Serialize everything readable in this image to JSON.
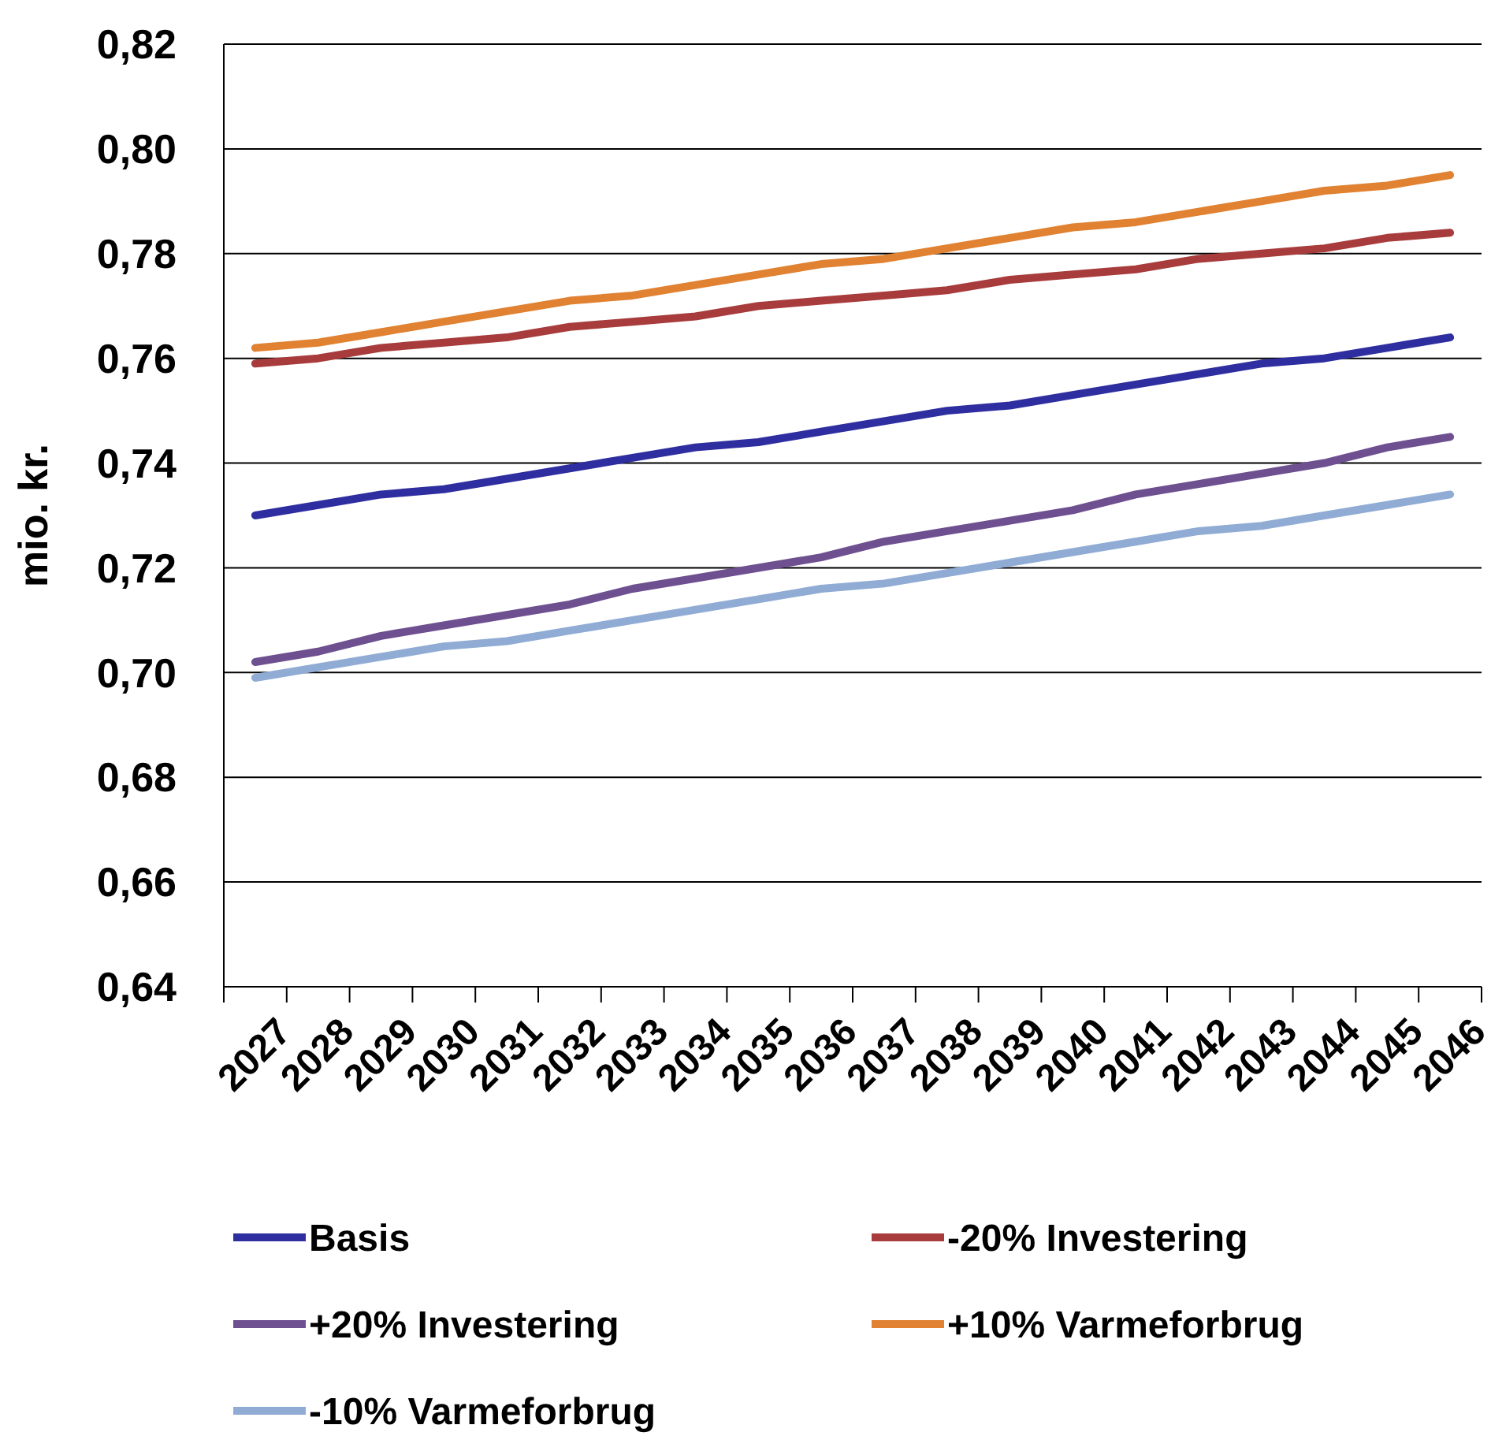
{
  "chart_data": {
    "type": "line",
    "ylabel": "mio. kr.",
    "categories": [
      "2027",
      "2028",
      "2029",
      "2030",
      "2031",
      "2032",
      "2033",
      "2034",
      "2035",
      "2036",
      "2037",
      "2038",
      "2039",
      "2040",
      "2041",
      "2042",
      "2043",
      "2044",
      "2045",
      "2046"
    ],
    "series": [
      {
        "name": "Basis",
        "color": "#2e2ea0",
        "values": [
          0.73,
          0.732,
          0.734,
          0.735,
          0.737,
          0.739,
          0.741,
          0.743,
          0.744,
          0.746,
          0.748,
          0.75,
          0.751,
          0.753,
          0.755,
          0.757,
          0.759,
          0.76,
          0.762,
          0.764
        ]
      },
      {
        "name": "-20% Investering",
        "color": "#a83c3c",
        "values": [
          0.759,
          0.76,
          0.762,
          0.763,
          0.764,
          0.766,
          0.767,
          0.768,
          0.77,
          0.771,
          0.772,
          0.773,
          0.775,
          0.776,
          0.777,
          0.779,
          0.78,
          0.781,
          0.783,
          0.784
        ]
      },
      {
        "name": "+20% Investering",
        "color": "#6e5090",
        "values": [
          0.702,
          0.704,
          0.707,
          0.709,
          0.711,
          0.713,
          0.716,
          0.718,
          0.72,
          0.722,
          0.725,
          0.727,
          0.729,
          0.731,
          0.734,
          0.736,
          0.738,
          0.74,
          0.743,
          0.745
        ]
      },
      {
        "name": "+10% Varmeforbrug",
        "color": "#e08232",
        "values": [
          0.762,
          0.763,
          0.765,
          0.767,
          0.769,
          0.771,
          0.772,
          0.774,
          0.776,
          0.778,
          0.779,
          0.781,
          0.783,
          0.785,
          0.786,
          0.788,
          0.79,
          0.792,
          0.793,
          0.795
        ]
      },
      {
        "name": "-10% Varmeforbrug",
        "color": "#90acd4",
        "values": [
          0.699,
          0.701,
          0.703,
          0.705,
          0.706,
          0.708,
          0.71,
          0.712,
          0.714,
          0.716,
          0.717,
          0.719,
          0.721,
          0.723,
          0.725,
          0.727,
          0.728,
          0.73,
          0.732,
          0.734
        ]
      }
    ],
    "ylim": [
      0.64,
      0.82
    ],
    "yticks": [
      {
        "value": 0.64,
        "label": "0,64"
      },
      {
        "value": 0.66,
        "label": "0,66"
      },
      {
        "value": 0.68,
        "label": "0,68"
      },
      {
        "value": 0.7,
        "label": "0,70"
      },
      {
        "value": 0.72,
        "label": "0,72"
      },
      {
        "value": 0.74,
        "label": "0,74"
      },
      {
        "value": 0.76,
        "label": "0,76"
      },
      {
        "value": 0.78,
        "label": "0,78"
      },
      {
        "value": 0.8,
        "label": "0,80"
      },
      {
        "value": 0.82,
        "label": "0,82"
      }
    ],
    "grid": "y",
    "legend": "bottom",
    "marker": "none",
    "line_style": "solid"
  }
}
